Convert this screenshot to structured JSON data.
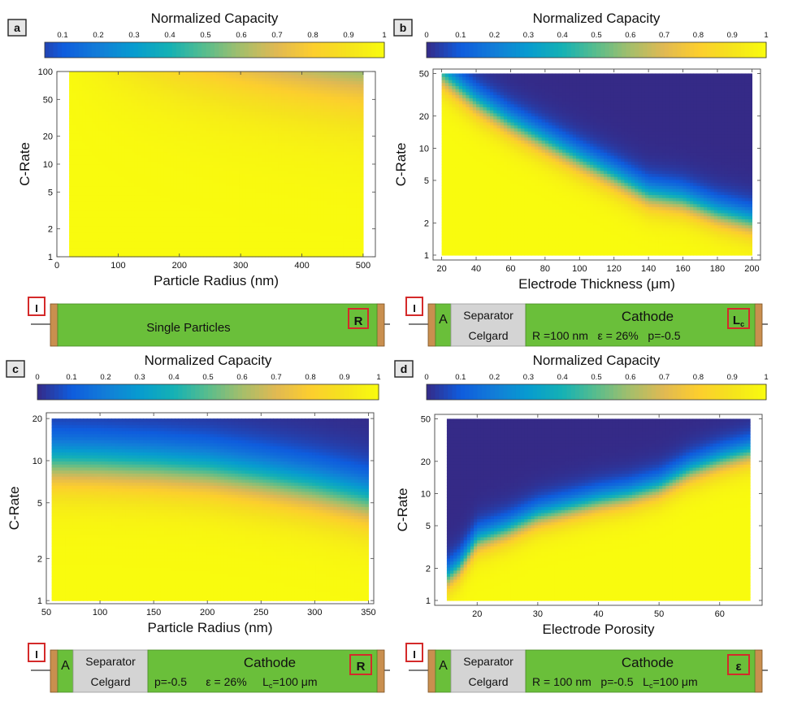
{
  "chart_data": [
    {
      "panel": "a",
      "type": "heatmap",
      "title": "Normalized Capacity",
      "colorbar_ticks": [
        "0.1",
        "0.2",
        "0.3",
        "0.4",
        "0.5",
        "0.6",
        "0.7",
        "0.8",
        "0.9",
        "1"
      ],
      "colorbar_range": [
        0.05,
        1
      ],
      "xlabel": "Particle Radius (nm)",
      "ylabel": "C-Rate",
      "xlim": [
        0,
        520
      ],
      "ylim": [
        1,
        100
      ],
      "y_scale": "log",
      "data_extent": {
        "x": [
          20,
          500
        ],
        "y": [
          1,
          100
        ]
      },
      "x_ticks": [
        0,
        100,
        200,
        300,
        400,
        500
      ],
      "y_ticks": [
        1,
        2,
        5,
        10,
        20,
        50,
        100
      ],
      "capacity_model": {
        "kind": "radius",
        "k": 70000,
        "alpha": 1.0,
        "c50": 0.9,
        "n": 1.4
      },
      "cell": {
        "current_label": "I",
        "center_label": "Single Particles",
        "variable_label": "R"
      }
    },
    {
      "panel": "b",
      "type": "heatmap",
      "title": "Normalized Capacity",
      "colorbar_ticks": [
        "0",
        "0.1",
        "0.2",
        "0.3",
        "0.4",
        "0.5",
        "0.6",
        "0.7",
        "0.8",
        "0.9",
        "1"
      ],
      "colorbar_range": [
        0,
        1
      ],
      "xlabel": "Electrode Thickness (μm)",
      "ylabel": "C-Rate",
      "xlim": [
        15,
        205
      ],
      "ylim": [
        0.9,
        55
      ],
      "y_scale": "log",
      "data_extent": {
        "x": [
          20,
          200
        ],
        "y": [
          1,
          50
        ]
      },
      "x_ticks": [
        20,
        40,
        60,
        80,
        100,
        120,
        140,
        160,
        180,
        200
      ],
      "y_ticks": [
        1,
        2,
        5,
        10,
        20,
        50
      ],
      "capacity_model": {
        "kind": "boundary",
        "x": [
          20,
          40,
          60,
          80,
          100,
          120,
          140,
          160,
          180,
          200
        ],
        "logc": [
          1.68,
          1.42,
          1.22,
          1.05,
          0.88,
          0.72,
          0.55,
          0.5,
          0.38,
          0.3
        ],
        "width": 0.22
      },
      "cell": {
        "current_label": "I",
        "anode_label": "A",
        "separator_label": "Separator",
        "separator_material": "Celgard",
        "cathode_label": "Cathode",
        "params": "R =100 nm   ε = 26%   p=-0.5",
        "variable_label": "L",
        "variable_sub": "c"
      }
    },
    {
      "panel": "c",
      "type": "heatmap",
      "title": "Normalized Capacity",
      "colorbar_ticks": [
        "0",
        "0.1",
        "0.2",
        "0.3",
        "0.4",
        "0.5",
        "0.6",
        "0.7",
        "0.8",
        "0.9",
        "1"
      ],
      "colorbar_range": [
        0,
        1
      ],
      "xlabel": "Particle Radius (nm)",
      "ylabel": "C-Rate",
      "xlim": [
        50,
        355
      ],
      "ylim": [
        0.95,
        22
      ],
      "y_scale": "log",
      "data_extent": {
        "x": [
          55,
          350
        ],
        "y": [
          1,
          20
        ]
      },
      "x_ticks": [
        50,
        100,
        150,
        200,
        250,
        300,
        350
      ],
      "y_ticks": [
        1,
        2,
        5,
        10,
        20
      ],
      "capacity_model": {
        "kind": "boundary",
        "x": [
          50,
          100,
          150,
          200,
          250,
          300,
          350
        ],
        "logc": [
          0.98,
          0.97,
          0.95,
          0.92,
          0.86,
          0.79,
          0.7
        ],
        "width": 0.3
      },
      "cell": {
        "current_label": "I",
        "anode_label": "A",
        "separator_label": "Separator",
        "separator_material": "Celgard",
        "cathode_label": "Cathode",
        "params": "p=-0.5      ε = 26%     L",
        "params_sub": "c",
        "params_tail": "=100 μm",
        "variable_label": "R"
      }
    },
    {
      "panel": "d",
      "type": "heatmap",
      "title": "Normalized Capacity",
      "colorbar_ticks": [
        "0",
        "0.1",
        "0.2",
        "0.3",
        "0.4",
        "0.5",
        "0.6",
        "0.7",
        "0.8",
        "0.9",
        "1"
      ],
      "colorbar_range": [
        0,
        1
      ],
      "xlabel": "Electrode Porosity",
      "ylabel": "C-Rate",
      "xlim": [
        13,
        67
      ],
      "ylim": [
        0.9,
        55
      ],
      "y_scale": "log",
      "data_extent": {
        "x": [
          15,
          65
        ],
        "y": [
          1,
          50
        ]
      },
      "x_ticks": [
        20,
        30,
        40,
        50,
        60
      ],
      "y_ticks": [
        1,
        2,
        5,
        10,
        20,
        50
      ],
      "capacity_model": {
        "kind": "boundary",
        "x": [
          15,
          17,
          20,
          25,
          30,
          35,
          40,
          45,
          50,
          55,
          60,
          65
        ],
        "logc": [
          0.2,
          0.3,
          0.55,
          0.65,
          0.78,
          0.85,
          0.92,
          0.97,
          1.05,
          1.2,
          1.3,
          1.38
        ],
        "width": 0.2
      },
      "cell": {
        "current_label": "I",
        "anode_label": "A",
        "separator_label": "Separator",
        "separator_material": "Celgard",
        "cathode_label": "Cathode",
        "params": "R = 100 nm   p=-0.5   L",
        "params_sub": "c",
        "params_tail": "=100 μm",
        "variable_label": "ε"
      }
    }
  ]
}
